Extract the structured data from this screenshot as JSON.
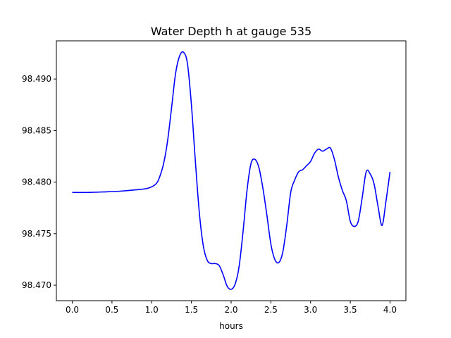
{
  "chart_data": {
    "type": "line",
    "title": "Water Depth h at gauge 535",
    "xlabel": "hours",
    "ylabel": "",
    "xlim": [
      -0.2,
      4.2
    ],
    "ylim": [
      98.4685,
      98.4937
    ],
    "x_ticks": [
      0.0,
      0.5,
      1.0,
      1.5,
      2.0,
      2.5,
      3.0,
      3.5,
      4.0
    ],
    "x_tick_labels": [
      "0.0",
      "0.5",
      "1.0",
      "1.5",
      "2.0",
      "2.5",
      "3.0",
      "3.5",
      "4.0"
    ],
    "y_ticks": [
      98.47,
      98.475,
      98.48,
      98.485,
      98.49
    ],
    "y_tick_labels": [
      "98.470",
      "98.475",
      "98.480",
      "98.485",
      "98.490"
    ],
    "grid": false,
    "series": [
      {
        "color": "#0000ff",
        "x": [
          0.0,
          0.2,
          0.4,
          0.6,
          0.8,
          0.95,
          1.05,
          1.1,
          1.15,
          1.2,
          1.25,
          1.3,
          1.35,
          1.4,
          1.45,
          1.5,
          1.55,
          1.6,
          1.65,
          1.7,
          1.75,
          1.8,
          1.85,
          1.9,
          1.95,
          2.0,
          2.05,
          2.1,
          2.15,
          2.2,
          2.25,
          2.3,
          2.35,
          2.4,
          2.45,
          2.5,
          2.55,
          2.6,
          2.65,
          2.7,
          2.75,
          2.8,
          2.85,
          2.9,
          2.95,
          3.0,
          3.05,
          3.1,
          3.15,
          3.2,
          3.25,
          3.3,
          3.35,
          3.4,
          3.45,
          3.5,
          3.55,
          3.6,
          3.65,
          3.7,
          3.75,
          3.8,
          3.85,
          3.9,
          3.95,
          4.0
        ],
        "y": [
          98.479,
          98.479,
          98.47905,
          98.47912,
          98.47925,
          98.4794,
          98.4798,
          98.4805,
          98.4818,
          98.484,
          98.4872,
          98.4905,
          98.4922,
          98.4926,
          98.4915,
          98.4875,
          98.482,
          98.477,
          98.4738,
          98.4724,
          98.4721,
          98.4721,
          98.4719,
          98.471,
          98.4699,
          98.4696,
          98.4701,
          98.4718,
          98.4752,
          98.4792,
          98.4818,
          98.4822,
          98.4814,
          98.4794,
          98.4768,
          98.474,
          98.4725,
          98.4722,
          98.4732,
          98.4758,
          98.479,
          98.4802,
          98.481,
          98.4812,
          98.4816,
          98.482,
          98.4828,
          98.4832,
          98.483,
          98.4832,
          98.4833,
          98.4822,
          98.4805,
          98.4792,
          98.4782,
          98.4762,
          98.4757,
          98.4762,
          98.4785,
          98.481,
          98.4808,
          98.4798,
          98.4776,
          98.4758,
          98.4782,
          98.481
        ]
      }
    ]
  }
}
